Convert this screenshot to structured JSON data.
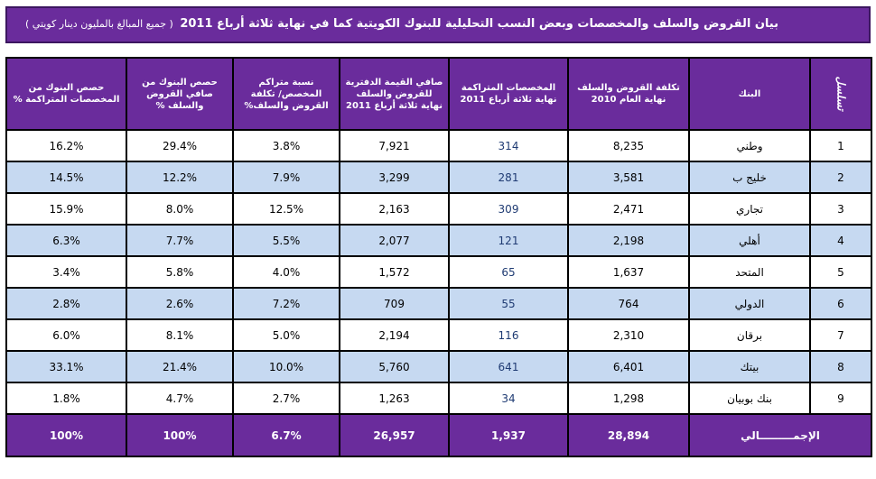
{
  "title": "بيان القروض والسلف والمخصصات وبعض النسب التحليلية للبنوك الكويتية كما في نهاية ثلاثة أرباع 2011",
  "note": "( جميع المبالغ بالمليون دينار كويتي )",
  "headers": {
    "seq": "تسلسل",
    "bank": "البنك",
    "cost2010": "تكلفة القروض والسلف نهاية العام 2010",
    "provisions": "المخصصات المتراكمة نهاية ثلاثة أرباع 2011",
    "net_book": "صافي القيمة الدفترية للقروض والسلف نهاية ثلاثة أرباع 2011",
    "ratio": "نسبة متراكم المخصص/ تكلفة القروض والسلف%",
    "share_loans": "حصص البنوك من صافي القروض والسلف %",
    "share_prov": "حصص البنوك من المخصصات المتراكمة %"
  },
  "rows": [
    {
      "seq": "1",
      "bank": "وطني",
      "cost2010": "8,235",
      "provisions": "314",
      "net_book": "7,921",
      "ratio": "3.8%",
      "share_loans": "29.4%",
      "share_prov": "16.2%"
    },
    {
      "seq": "2",
      "bank": "خليج ب",
      "cost2010": "3,581",
      "provisions": "281",
      "net_book": "3,299",
      "ratio": "7.9%",
      "share_loans": "12.2%",
      "share_prov": "14.5%"
    },
    {
      "seq": "3",
      "bank": "تجاري",
      "cost2010": "2,471",
      "provisions": "309",
      "net_book": "2,163",
      "ratio": "12.5%",
      "share_loans": "8.0%",
      "share_prov": "15.9%"
    },
    {
      "seq": "4",
      "bank": "أهلي",
      "cost2010": "2,198",
      "provisions": "121",
      "net_book": "2,077",
      "ratio": "5.5%",
      "share_loans": "7.7%",
      "share_prov": "6.3%"
    },
    {
      "seq": "5",
      "bank": "المتحد",
      "cost2010": "1,637",
      "provisions": "65",
      "net_book": "1,572",
      "ratio": "4.0%",
      "share_loans": "5.8%",
      "share_prov": "3.4%"
    },
    {
      "seq": "6",
      "bank": "الدولي",
      "cost2010": "764",
      "provisions": "55",
      "net_book": "709",
      "ratio": "7.2%",
      "share_loans": "2.6%",
      "share_prov": "2.8%"
    },
    {
      "seq": "7",
      "bank": "برقان",
      "cost2010": "2,310",
      "provisions": "116",
      "net_book": "2,194",
      "ratio": "5.0%",
      "share_loans": "8.1%",
      "share_prov": "6.0%"
    },
    {
      "seq": "8",
      "bank": "بيتك",
      "cost2010": "6,401",
      "provisions": "641",
      "net_book": "5,760",
      "ratio": "10.0%",
      "share_loans": "21.4%",
      "share_prov": "33.1%"
    },
    {
      "seq": "9",
      "bank": "بنك بوبيان",
      "cost2010": "1,298",
      "provisions": "34",
      "net_book": "1,263",
      "ratio": "2.7%",
      "share_loans": "4.7%",
      "share_prov": "1.8%"
    }
  ],
  "total": {
    "label": "الإجمـــــــــالي",
    "cost2010": "28,894",
    "provisions": "1,937",
    "net_book": "26,957",
    "ratio": "6.7%",
    "share_loans": "100%",
    "share_prov": "100%"
  }
}
